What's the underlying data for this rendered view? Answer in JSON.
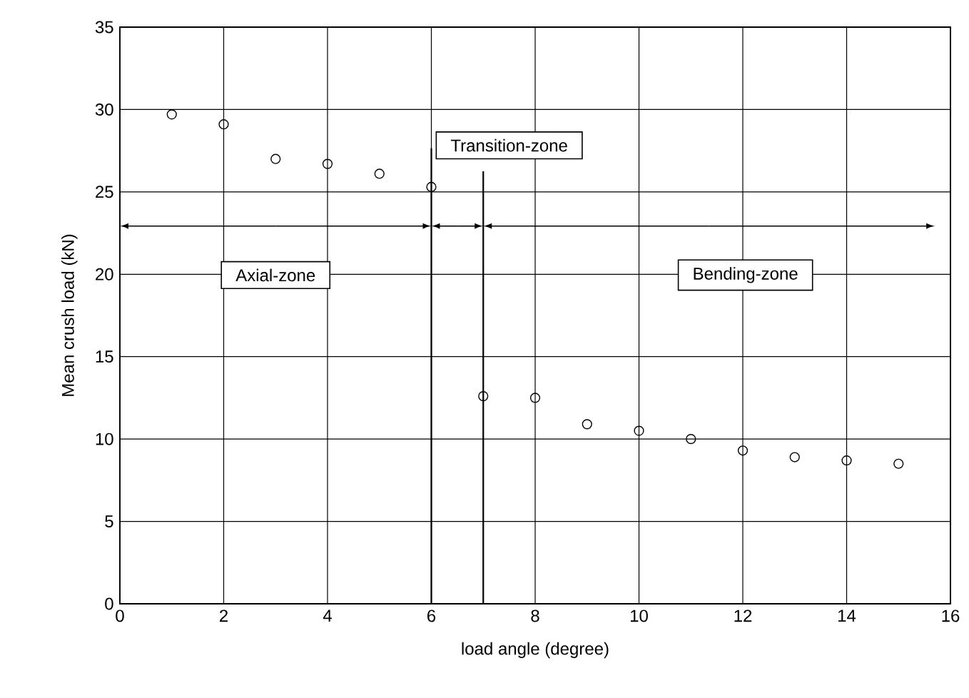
{
  "chart_data": {
    "type": "scatter",
    "xlabel": "load angle (degree)",
    "ylabel": "Mean crush load (kN)",
    "x": [
      1,
      2,
      3,
      4,
      5,
      6,
      7,
      8,
      9,
      10,
      11,
      12,
      13,
      14,
      15
    ],
    "values": [
      29.7,
      29.1,
      27.0,
      26.7,
      26.1,
      25.3,
      12.6,
      12.5,
      10.9,
      10.5,
      10.0,
      9.3,
      8.9,
      8.7,
      8.5
    ],
    "color": "#000000",
    "marker": "circle",
    "xlim": [
      0,
      16
    ],
    "xticks": [
      0,
      2,
      4,
      6,
      8,
      10,
      12,
      14,
      16
    ],
    "ylim": [
      0,
      35
    ],
    "yticks": [
      0,
      5,
      10,
      15,
      20,
      25,
      30,
      35
    ],
    "grid": true,
    "ref_lines": [
      {
        "axis": "x",
        "value": 6
      },
      {
        "axis": "x",
        "value": 7
      }
    ],
    "annotations": [
      "Axial-zone",
      "Transition-zone",
      "Bending-zone"
    ]
  }
}
